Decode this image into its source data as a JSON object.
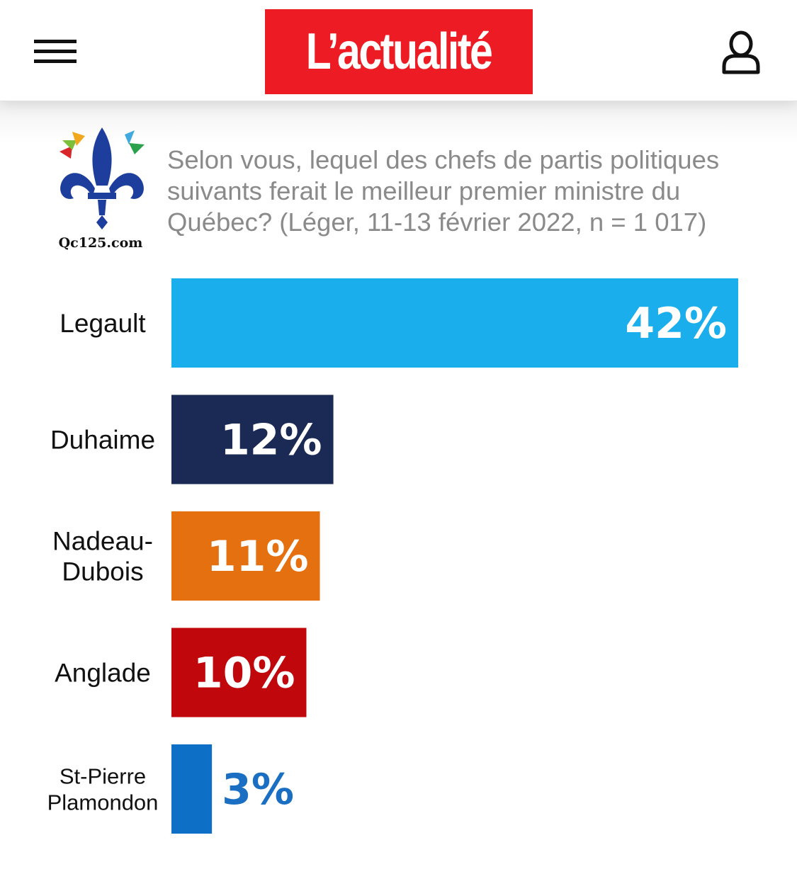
{
  "header": {
    "brand": "L’actualité",
    "menu_icon": "hamburger-menu-icon",
    "user_icon": "user-account-icon"
  },
  "source": {
    "logo_caption": "Qc125.com",
    "logo_icon": "fleur-de-lis-logo-icon"
  },
  "chart_data": {
    "type": "bar",
    "orientation": "horizontal",
    "title": "Selon vous, lequel des chefs de partis politiques suivants ferait le meilleur premier ministre du Québec? (Léger, 11-13 février 2022, n = 1 017)",
    "categories": [
      [
        "Legault"
      ],
      [
        "Duhaime"
      ],
      [
        "Nadeau-",
        "Dubois"
      ],
      [
        "Anglade"
      ],
      [
        "St-Pierre",
        "Plamondon"
      ]
    ],
    "values": [
      42,
      12,
      11,
      10,
      3
    ],
    "value_labels": [
      "42%",
      "12%",
      "11%",
      "10%",
      "3%"
    ],
    "colors": [
      "#1aaeed",
      "#1b2a55",
      "#e5700f",
      "#c0080c",
      "#0e6fc6"
    ],
    "label_colors": [
      "#ffffff",
      "#ffffff",
      "#ffffff",
      "#ffffff",
      "#1a6fc2"
    ],
    "xlim": [
      0,
      42
    ],
    "grid": false,
    "legend": "none"
  }
}
